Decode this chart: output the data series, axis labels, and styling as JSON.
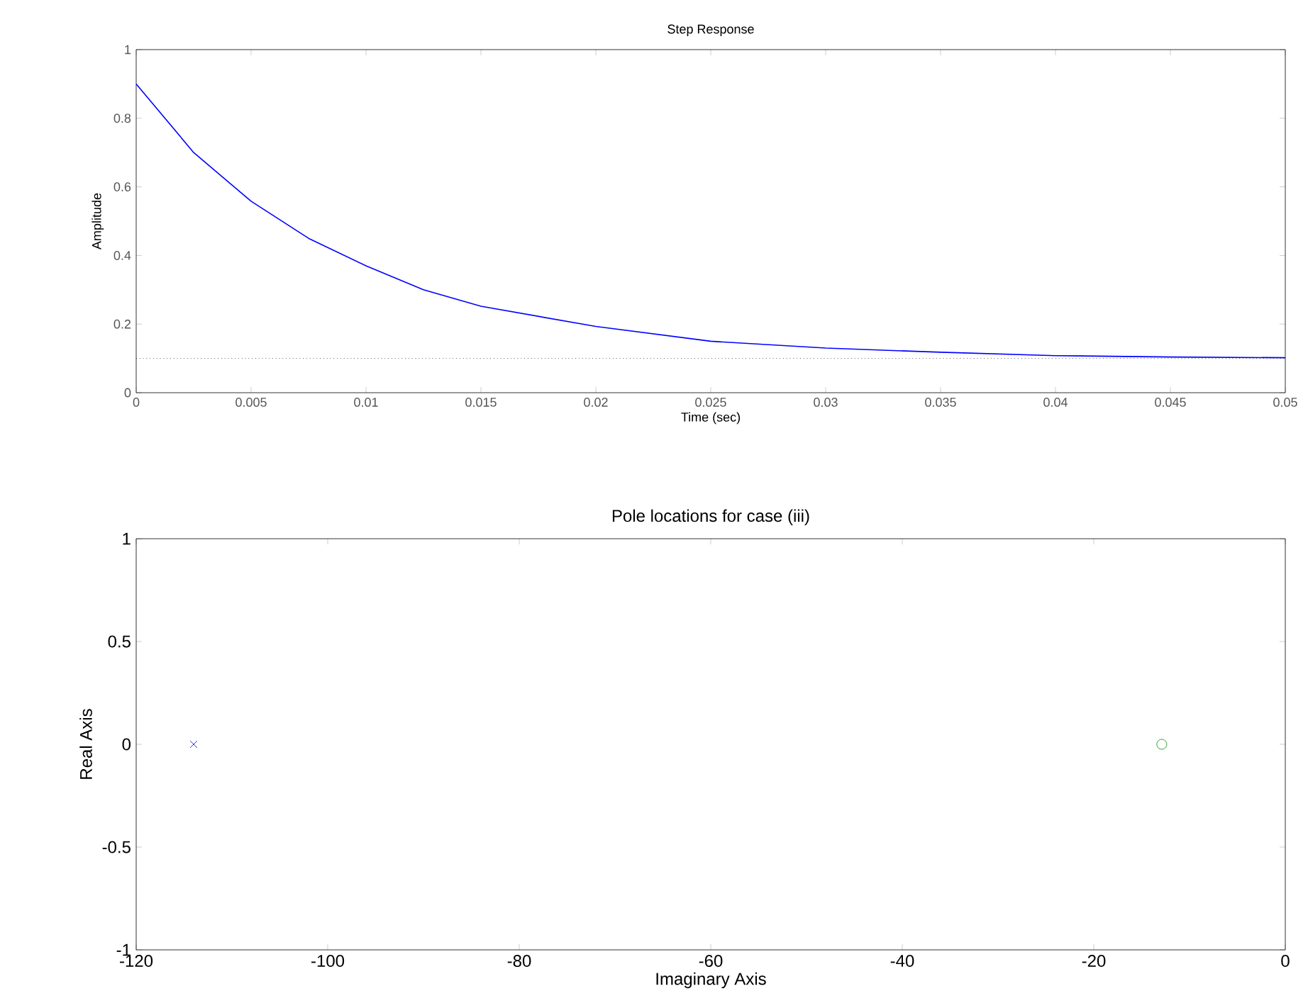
{
  "chart_data": [
    {
      "type": "line",
      "title": "Step Response",
      "xlabel": "Time (sec)",
      "ylabel": "Amplitude",
      "x": [
        0,
        0.0025,
        0.005,
        0.0075,
        0.01,
        0.0125,
        0.015,
        0.02,
        0.025,
        0.03,
        0.035,
        0.04,
        0.045,
        0.05
      ],
      "series": [
        {
          "color": "#0000ff",
          "values": [
            0.9,
            0.7,
            0.558,
            0.45,
            0.37,
            0.3,
            0.252,
            0.193,
            0.15,
            0.13,
            0.118,
            0.108,
            0.104,
            0.102
          ]
        }
      ],
      "xlim": [
        0,
        0.05
      ],
      "ylim": [
        0,
        1
      ],
      "xticks": [
        0,
        0.005,
        0.01,
        0.015,
        0.02,
        0.025,
        0.03,
        0.035,
        0.04,
        0.045,
        0.05
      ],
      "yticks": [
        0,
        0.2,
        0.4,
        0.6,
        0.8,
        1
      ],
      "ref_lines": [
        {
          "axis": "y",
          "value": 0.1,
          "color": "#000000",
          "line_style": "dotted"
        }
      ]
    },
    {
      "type": "scatter",
      "title": "Pole locations for case (iii)",
      "xlabel": "Imaginary Axis",
      "ylabel": "Real Axis",
      "series": [
        {
          "color": "#0000ff",
          "x": [
            -114
          ],
          "values": [
            0
          ],
          "marker": "cross"
        },
        {
          "color": "#008000",
          "x": [
            -12.9
          ],
          "values": [
            0
          ],
          "marker": "circle"
        }
      ],
      "xlim": [
        -120,
        0
      ],
      "ylim": [
        -1,
        1
      ],
      "xticks": [
        -120,
        -100,
        -80,
        -60,
        -40,
        -20,
        0
      ],
      "yticks": [
        -1,
        -0.5,
        0,
        0.5,
        1
      ]
    }
  ]
}
